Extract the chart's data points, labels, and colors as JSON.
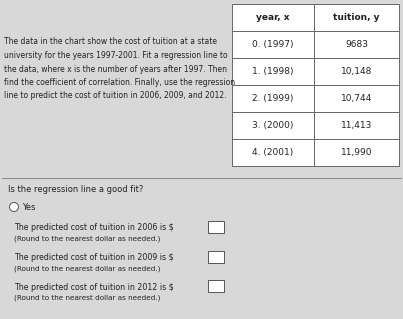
{
  "title_text_lines": [
    "The data in the chart show the cost of tuition at a state",
    "university for the years 1997-2001. Fit a regression line to",
    "the data, where x is the number of years after 1997. Then",
    "find the coefficient of correlation. Finally, use the regression",
    "line to predict the cost of tuition in 2006, 2009, and 2012."
  ],
  "table_headers": [
    "year, x",
    "tuition, y"
  ],
  "table_rows": [
    [
      "0. (1997)",
      "9683"
    ],
    [
      "1. (1998)",
      "10,148"
    ],
    [
      "2. (1999)",
      "10,744"
    ],
    [
      "3. (2000)",
      "11,413"
    ],
    [
      "4. (2001)",
      "11,990"
    ]
  ],
  "question1": "Is the regression line a good fit?",
  "answer1": "Yes",
  "question2": "The predicted cost of tuition in 2006 is $",
  "question2_note": "(Round to the nearest dollar as needed.)",
  "question3": "The predicted cost of tuition in 2009 is $",
  "question3_note": "(Round to the nearest dollar as needed.)",
  "question4": "The predicted cost of tuition in 2012 is $",
  "question4_note": "(Round to the nearest dollar as needed.)",
  "bg_color": "#d8d8d8",
  "text_color": "#222222",
  "font_size_main": 5.5,
  "font_size_table_header": 6.5,
  "font_size_table_body": 6.5,
  "font_size_question": 6.0,
  "font_size_note": 5.2
}
